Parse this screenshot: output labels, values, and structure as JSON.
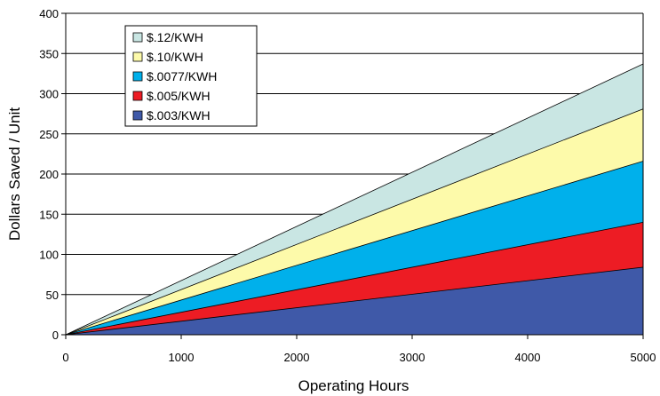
{
  "chart_data": {
    "type": "area",
    "stacked": false,
    "title": "",
    "xlabel": "Operating Hours",
    "ylabel": "Dollars Saved / Unit",
    "xlim": [
      0,
      5000
    ],
    "ylim": [
      0,
      400
    ],
    "x_ticks": [
      0,
      1000,
      2000,
      3000,
      4000,
      5000
    ],
    "y_ticks": [
      0,
      50,
      100,
      150,
      200,
      250,
      300,
      350,
      400
    ],
    "grid": "horizontal",
    "legend_position": "top-left",
    "x": [
      0,
      5000
    ],
    "series": [
      {
        "name": "$.12/KWH",
        "values": [
          0,
          337
        ],
        "color": "#c9e6e3"
      },
      {
        "name": "$.10/KWH",
        "values": [
          0,
          281
        ],
        "color": "#fdfaaa"
      },
      {
        "name": "$.0077/KWH",
        "values": [
          0,
          216
        ],
        "color": "#00b0eb"
      },
      {
        "name": "$.005/KWH",
        "values": [
          0,
          140
        ],
        "color": "#ed1c24"
      },
      {
        "name": "$.003/KWH",
        "values": [
          0,
          84
        ],
        "color": "#3f59a8"
      }
    ]
  }
}
